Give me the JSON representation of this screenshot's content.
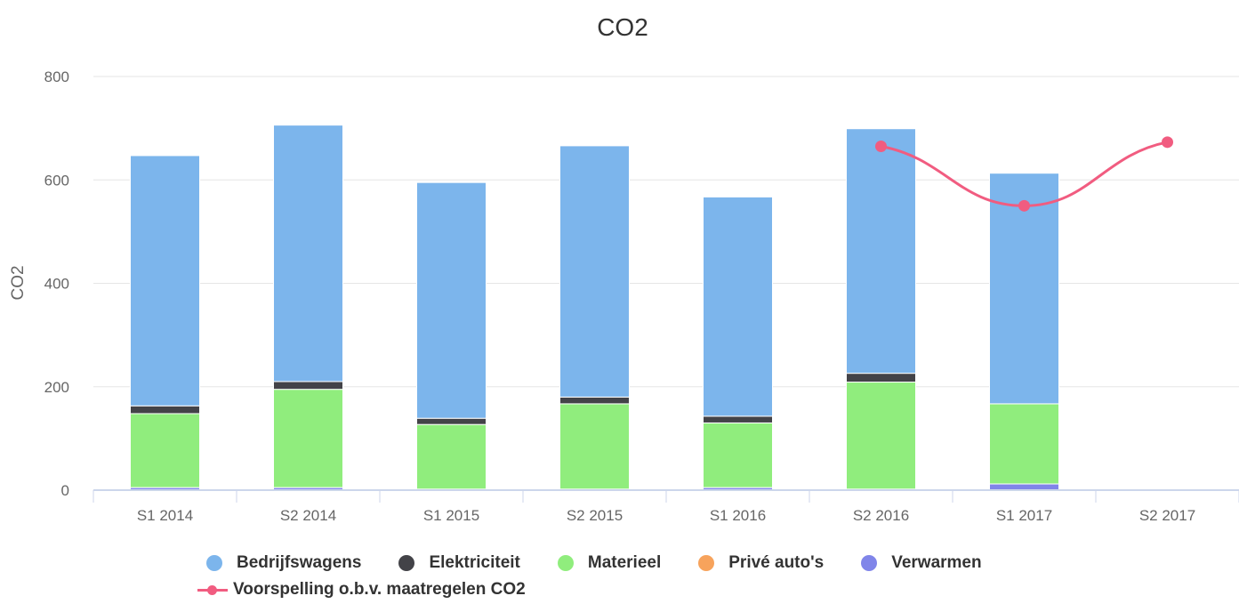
{
  "chart_data": {
    "type": "bar",
    "stacked": true,
    "title": "CO2",
    "ylabel": "CO2",
    "xlabel": "",
    "ylim": [
      0,
      800
    ],
    "yticks": [
      "0",
      "200",
      "400",
      "600",
      "800"
    ],
    "grid": true,
    "legend_position": "bottom",
    "categories": [
      "S1 2014",
      "S2 2014",
      "S1 2015",
      "S2 2015",
      "S1 2016",
      "S2 2016",
      "S1 2017",
      "S2 2017"
    ],
    "series": [
      {
        "name": "Verwarmen",
        "color": "#8085e9",
        "values": [
          5,
          5,
          2,
          2,
          5,
          2,
          12,
          0
        ]
      },
      {
        "name": "Privé auto's",
        "color": "#f7a35c",
        "values": [
          0,
          0,
          0,
          0,
          0,
          0,
          0,
          0
        ]
      },
      {
        "name": "Materieel",
        "color": "#90ed7d",
        "values": [
          143,
          190,
          125,
          165,
          125,
          207,
          155,
          0
        ]
      },
      {
        "name": "Elektriciteit",
        "color": "#434348",
        "values": [
          15,
          15,
          12,
          13,
          13,
          17,
          0,
          0
        ]
      },
      {
        "name": "Bedrijfswagens",
        "color": "#7cb5ec",
        "values": [
          484,
          496,
          456,
          486,
          424,
          473,
          446,
          0
        ]
      }
    ],
    "line_series": {
      "name": "Voorspelling o.b.v. maatregelen CO2",
      "color": "#f15c80",
      "values": [
        null,
        null,
        null,
        null,
        null,
        665,
        550,
        673
      ]
    },
    "legend_row1": [
      "Bedrijfswagens",
      "Elektriciteit",
      "Materieel",
      "Privé auto's",
      "Verwarmen"
    ],
    "legend_row2": [
      "Voorspelling o.b.v. maatregelen CO2"
    ]
  }
}
